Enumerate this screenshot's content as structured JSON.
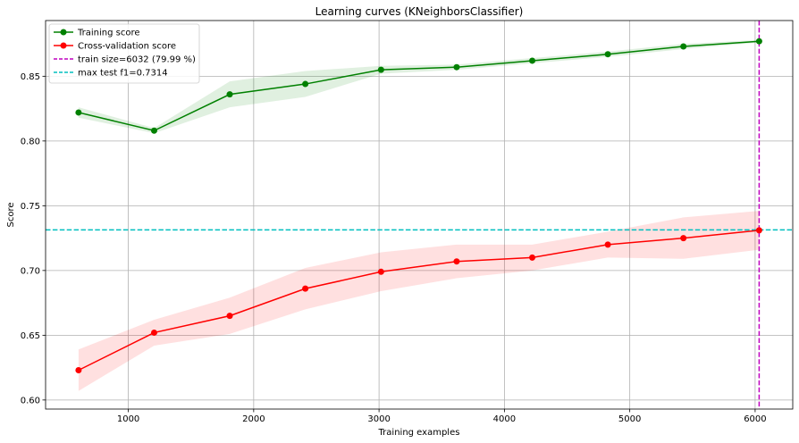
{
  "chart_data": {
    "type": "line",
    "title": "Learning curves (KNeighborsClassifier)",
    "xlabel": "Training examples",
    "ylabel": "Score",
    "xlim": [
      340,
      6300
    ],
    "ylim": [
      0.593,
      0.893
    ],
    "xticks": [
      1000,
      2000,
      3000,
      4000,
      5000,
      6000
    ],
    "yticks": [
      0.6,
      0.65,
      0.7,
      0.75,
      0.8,
      0.85
    ],
    "grid": true,
    "legend_position": "top-left",
    "x": [
      603,
      1206,
      1809,
      2412,
      3016,
      3619,
      4222,
      4825,
      5428,
      6032
    ],
    "series": [
      {
        "name": "Training score",
        "color": "#008000",
        "values": [
          0.822,
          0.808,
          0.836,
          0.844,
          0.855,
          0.857,
          0.862,
          0.867,
          0.873,
          0.877
        ],
        "band_lower": [
          0.818,
          0.806,
          0.826,
          0.834,
          0.852,
          0.855,
          0.86,
          0.865,
          0.871,
          0.876
        ],
        "band_upper": [
          0.826,
          0.81,
          0.846,
          0.854,
          0.858,
          0.859,
          0.864,
          0.869,
          0.875,
          0.878
        ]
      },
      {
        "name": "Cross-validation score",
        "color": "#ff0000",
        "values": [
          0.623,
          0.652,
          0.665,
          0.686,
          0.699,
          0.707,
          0.71,
          0.72,
          0.725,
          0.731
        ],
        "band_lower": [
          0.607,
          0.642,
          0.651,
          0.67,
          0.684,
          0.694,
          0.7,
          0.71,
          0.709,
          0.716
        ],
        "band_upper": [
          0.639,
          0.662,
          0.679,
          0.702,
          0.714,
          0.72,
          0.72,
          0.73,
          0.741,
          0.746
        ]
      }
    ],
    "reference_lines": [
      {
        "orientation": "vertical",
        "value": 6032,
        "label": "train size=6032 (79.99 %)",
        "color": "#bf00bf",
        "style": "dashed"
      },
      {
        "orientation": "horizontal",
        "value": 0.7314,
        "label": "max test f1=0.7314",
        "color": "#00bfbf",
        "style": "dashed"
      }
    ]
  }
}
